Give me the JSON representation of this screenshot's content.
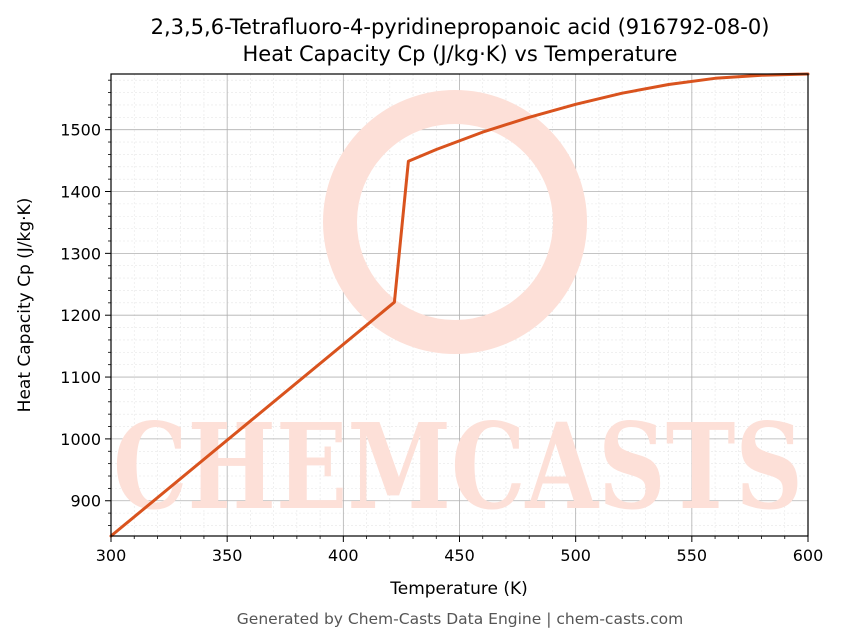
{
  "chart_data": {
    "type": "line",
    "title_line1": "2,3,5,6-Tetrafluoro-4-pyridinepropanoic acid (916792-08-0)",
    "title_line2": "Heat Capacity Cp (J/kg·K) vs Temperature",
    "xlabel": "Temperature (K)",
    "ylabel": "Heat Capacity Cp (J/kg·K)",
    "xlim": [
      300,
      600
    ],
    "ylim": [
      843,
      1590
    ],
    "x_ticks": [
      300,
      350,
      400,
      450,
      500,
      550,
      600
    ],
    "y_ticks": [
      900,
      1000,
      1100,
      1200,
      1300,
      1400,
      1500
    ],
    "grid": true,
    "series": [
      {
        "color": "#d9531e",
        "points": [
          [
            300,
            843
          ],
          [
            422,
            1221
          ],
          [
            428,
            1449
          ],
          [
            440,
            1468
          ],
          [
            460,
            1496
          ],
          [
            480,
            1520
          ],
          [
            500,
            1541
          ],
          [
            520,
            1559
          ],
          [
            540,
            1573
          ],
          [
            560,
            1583
          ],
          [
            580,
            1588
          ],
          [
            600,
            1590
          ]
        ]
      }
    ]
  },
  "watermark": {
    "text": "CHEMCASTS",
    "color": "#fde0d8"
  },
  "footer": "Generated by Chem-Casts Data Engine | chem-casts.com"
}
